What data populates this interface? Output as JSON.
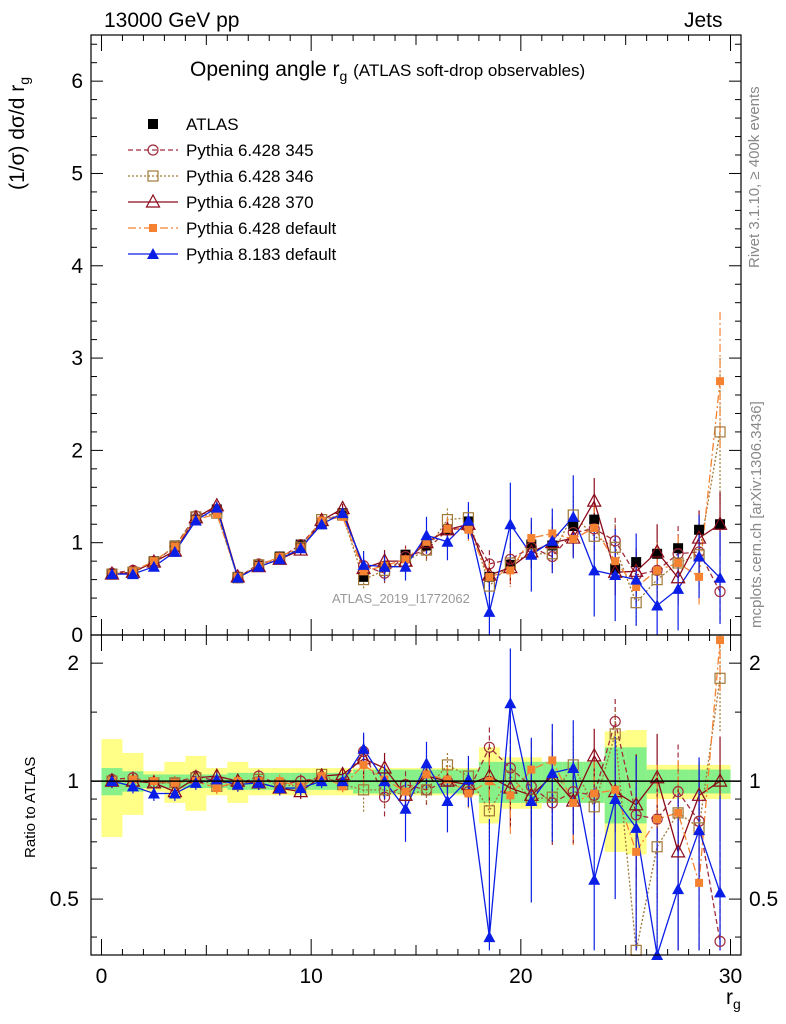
{
  "header": {
    "left": "13000 GeV pp",
    "right": "Jets"
  },
  "side_text": {
    "rivet": "Rivet 3.1.10, ≥ 400k events",
    "mcplots": "mcplots.cern.ch [arXiv:1306.3436]"
  },
  "watermark": "ATLAS_2019_I1772062",
  "colors": {
    "atlas": "#000000",
    "p345": "#a02c3c",
    "p346": "#a07838",
    "p370": "#8b0a1a",
    "pdefault": "#f58231",
    "p8": "#0a1ee6",
    "band_inner": "#88f088",
    "band_outer": "#ffff88"
  },
  "chart_data": [
    {
      "type": "scatter",
      "title_main": "Opening angle r",
      "title_sub": "g",
      "title_rest": "(ATLAS soft-drop observables)",
      "ylabel": "(1/σ) dσ/d r",
      "ylabel_sub": "g",
      "xlim": [
        -0.5,
        30.5
      ],
      "ylim": [
        0,
        6.5
      ],
      "yticks": [
        "0",
        "1",
        "2",
        "3",
        "4",
        "5",
        "6"
      ],
      "legend": {
        "placement": "top-left",
        "entries": [
          "ATLAS",
          "Pythia 6.428 345",
          "Pythia 6.428 346",
          "Pythia 6.428 370",
          "Pythia 6.428 default",
          "Pythia 8.183 default"
        ]
      },
      "x": [
        0.5,
        1.5,
        2.5,
        3.5,
        4.5,
        5.5,
        6.5,
        7.5,
        8.5,
        9.5,
        10.5,
        11.5,
        12.5,
        13.5,
        14.5,
        15.5,
        16.5,
        17.5,
        18.5,
        19.5,
        20.5,
        21.5,
        22.5,
        23.5,
        24.5,
        25.5,
        26.5,
        27.5,
        28.5,
        29.5
      ],
      "series": [
        {
          "name": "ATLAS",
          "values": [
            0.66,
            0.68,
            0.8,
            0.97,
            1.25,
            1.36,
            0.63,
            0.75,
            0.85,
            0.98,
            1.2,
            1.32,
            0.63,
            0.74,
            0.87,
            0.97,
            1.14,
            1.23,
            0.63,
            0.76,
            0.98,
            0.97,
            1.18,
            1.25,
            0.72,
            0.79,
            0.88,
            0.94,
            1.14,
            1.2
          ]
        },
        {
          "name": "Pythia 6.428 345",
          "values": [
            0.67,
            0.7,
            0.79,
            0.96,
            1.29,
            1.36,
            0.62,
            0.77,
            0.83,
            0.98,
            1.23,
            1.31,
            0.75,
            0.67,
            0.85,
            0.92,
            1.14,
            1.16,
            0.77,
            0.82,
            0.95,
            0.85,
            1.11,
            1.15,
            1.02,
            0.65,
            0.7,
            0.88,
            0.9,
            0.47
          ],
          "err": [
            0.05,
            0.05,
            0.05,
            0.05,
            0.05,
            0.05,
            0.05,
            0.05,
            0.05,
            0.05,
            0.05,
            0.05,
            0.1,
            0.12,
            0.12,
            0.12,
            0.12,
            0.12,
            0.15,
            0.18,
            0.18,
            0.18,
            0.2,
            0.25,
            0.25,
            0.25,
            0.3,
            0.3,
            0.3,
            0.35
          ]
        },
        {
          "name": "Pythia 6.428 346",
          "values": [
            0.66,
            0.68,
            0.79,
            0.96,
            1.28,
            1.32,
            0.62,
            0.76,
            0.83,
            0.95,
            1.25,
            1.3,
            0.6,
            0.7,
            0.8,
            0.92,
            1.25,
            1.27,
            0.53,
            0.78,
            0.88,
            0.88,
            1.3,
            1.07,
            0.95,
            0.35,
            0.6,
            0.78,
            0.87,
            2.2
          ],
          "err": [
            0.05,
            0.05,
            0.05,
            0.05,
            0.05,
            0.05,
            0.05,
            0.05,
            0.05,
            0.05,
            0.05,
            0.05,
            0.1,
            0.12,
            0.12,
            0.12,
            0.12,
            0.12,
            0.15,
            0.18,
            0.18,
            0.18,
            0.2,
            0.25,
            0.25,
            0.25,
            0.3,
            0.3,
            0.3,
            0.8
          ]
        },
        {
          "name": "Pythia 6.428 370",
          "values": [
            0.66,
            0.68,
            0.79,
            0.91,
            1.27,
            1.4,
            0.63,
            0.74,
            0.82,
            0.92,
            1.24,
            1.37,
            0.72,
            0.8,
            0.8,
            1.0,
            1.14,
            1.2,
            0.65,
            0.73,
            0.9,
            1.0,
            1.05,
            1.45,
            0.68,
            0.69,
            0.9,
            0.62,
            1.05,
            1.2
          ],
          "err": [
            0.05,
            0.05,
            0.05,
            0.05,
            0.05,
            0.05,
            0.05,
            0.05,
            0.05,
            0.05,
            0.05,
            0.05,
            0.1,
            0.12,
            0.12,
            0.12,
            0.12,
            0.12,
            0.15,
            0.18,
            0.18,
            0.18,
            0.2,
            0.25,
            0.25,
            0.25,
            0.3,
            0.3,
            0.3,
            0.35
          ]
        },
        {
          "name": "Pythia 6.428 default",
          "values": [
            0.66,
            0.69,
            0.8,
            0.96,
            1.25,
            1.31,
            0.63,
            0.75,
            0.85,
            0.95,
            1.24,
            1.28,
            0.69,
            0.75,
            0.82,
            1.01,
            1.15,
            1.14,
            0.63,
            0.7,
            1.05,
            1.1,
            1.04,
            1.16,
            0.8,
            0.52,
            0.7,
            0.78,
            0.63,
            2.75
          ],
          "err": [
            0.05,
            0.05,
            0.05,
            0.05,
            0.05,
            0.05,
            0.05,
            0.05,
            0.05,
            0.05,
            0.05,
            0.05,
            0.1,
            0.12,
            0.12,
            0.12,
            0.12,
            0.12,
            0.15,
            0.18,
            0.18,
            0.18,
            0.2,
            0.25,
            0.25,
            0.25,
            0.3,
            0.3,
            0.3,
            0.75
          ]
        },
        {
          "name": "Pythia 8.183 default",
          "values": [
            0.66,
            0.66,
            0.74,
            0.9,
            1.24,
            1.38,
            0.62,
            0.74,
            0.82,
            0.94,
            1.2,
            1.32,
            0.76,
            0.74,
            0.74,
            1.08,
            1.01,
            1.24,
            0.25,
            1.2,
            0.87,
            1.02,
            1.28,
            0.7,
            0.65,
            0.6,
            0.32,
            0.5,
            0.85,
            0.62
          ],
          "err": [
            0.05,
            0.05,
            0.05,
            0.05,
            0.05,
            0.05,
            0.05,
            0.05,
            0.05,
            0.05,
            0.05,
            0.05,
            0.15,
            0.15,
            0.15,
            0.2,
            0.2,
            0.2,
            0.35,
            0.45,
            0.4,
            0.35,
            0.45,
            0.5,
            0.5,
            0.5,
            0.4,
            0.45,
            0.45,
            0.5
          ]
        }
      ]
    },
    {
      "type": "scatter",
      "ylabel": "Ratio to ATLAS",
      "xlabel": "r",
      "xlabel_sub": "g",
      "xlim": [
        -0.5,
        30.5
      ],
      "ylim": [
        0.36,
        2.36
      ],
      "yticks": [
        "0.5",
        "1",
        "2"
      ],
      "xticks": [
        "0",
        "10",
        "20",
        "30"
      ],
      "band_inner": [
        0.08,
        0.06,
        0.04,
        0.04,
        0.04,
        0.04,
        0.05,
        0.05,
        0.05,
        0.05,
        0.05,
        0.05,
        0.07,
        0.07,
        0.07,
        0.07,
        0.07,
        0.07,
        0.12,
        0.12,
        0.12,
        0.12,
        0.12,
        0.12,
        0.22,
        0.22,
        0.07,
        0.07,
        0.07,
        0.07
      ],
      "band_outer": [
        0.28,
        0.18,
        0.06,
        0.12,
        0.16,
        0.08,
        0.12,
        0.08,
        0.08,
        0.08,
        0.08,
        0.08,
        0.08,
        0.08,
        0.08,
        0.08,
        0.08,
        0.08,
        0.22,
        0.15,
        0.15,
        0.12,
        0.12,
        0.12,
        0.34,
        0.35,
        0.1,
        0.1,
        0.1,
        0.1
      ],
      "series": [
        {
          "name": "Pythia 6.428 345",
          "values": [
            1.01,
            1.02,
            0.99,
            0.99,
            1.03,
            1.0,
            0.98,
            1.03,
            0.98,
            1.0,
            1.02,
            0.99,
            1.19,
            0.91,
            0.98,
            0.95,
            1.0,
            0.94,
            1.22,
            1.08,
            0.97,
            0.88,
            0.94,
            0.92,
            1.42,
            0.82,
            0.8,
            0.94,
            0.79,
            0.39
          ],
          "err": [
            0.04,
            0.04,
            0.04,
            0.04,
            0.04,
            0.04,
            0.04,
            0.04,
            0.04,
            0.04,
            0.04,
            0.04,
            0.12,
            0.1,
            0.08,
            0.08,
            0.08,
            0.08,
            0.15,
            0.2,
            0.2,
            0.2,
            0.2,
            0.2,
            0.2,
            0.35,
            0.3,
            0.3,
            0.2,
            0.3
          ]
        },
        {
          "name": "Pythia 6.428 346",
          "values": [
            1.0,
            1.0,
            0.99,
            0.99,
            1.02,
            0.97,
            0.98,
            1.01,
            0.98,
            0.97,
            1.04,
            0.98,
            0.95,
            0.95,
            0.92,
            0.95,
            1.1,
            1.03,
            0.84,
            1.03,
            0.9,
            0.91,
            1.1,
            0.86,
            1.32,
            0.37,
            0.68,
            0.83,
            0.76,
            1.83
          ],
          "err": [
            0.04,
            0.04,
            0.04,
            0.04,
            0.04,
            0.04,
            0.04,
            0.04,
            0.04,
            0.04,
            0.04,
            0.04,
            0.12,
            0.1,
            0.08,
            0.08,
            0.08,
            0.08,
            0.15,
            0.2,
            0.2,
            0.2,
            0.2,
            0.2,
            0.2,
            0.35,
            0.3,
            0.3,
            0.2,
            0.5
          ]
        },
        {
          "name": "Pythia 6.428 370",
          "values": [
            1.0,
            1.0,
            0.99,
            0.94,
            1.02,
            1.03,
            1.0,
            0.99,
            0.96,
            0.94,
            1.03,
            1.04,
            1.14,
            1.08,
            0.92,
            1.03,
            1.0,
            0.98,
            1.03,
            0.96,
            0.92,
            1.03,
            0.89,
            1.16,
            0.94,
            0.87,
            1.02,
            0.66,
            0.92,
            1.0
          ],
          "err": [
            0.04,
            0.04,
            0.04,
            0.04,
            0.04,
            0.04,
            0.04,
            0.04,
            0.04,
            0.04,
            0.04,
            0.04,
            0.12,
            0.1,
            0.08,
            0.08,
            0.08,
            0.08,
            0.15,
            0.2,
            0.2,
            0.2,
            0.2,
            0.2,
            0.2,
            0.3,
            0.3,
            0.3,
            0.2,
            0.3
          ]
        },
        {
          "name": "Pythia 6.428 default",
          "values": [
            1.0,
            1.01,
            1.0,
            0.99,
            1.0,
            0.96,
            1.0,
            1.0,
            1.0,
            0.97,
            1.03,
            0.97,
            1.1,
            1.01,
            0.94,
            1.04,
            1.01,
            0.93,
            1.0,
            0.92,
            1.07,
            1.13,
            0.88,
            0.93,
            0.95,
            0.66,
            0.8,
            0.83,
            0.55,
            2.29
          ],
          "err": [
            0.04,
            0.04,
            0.04,
            0.04,
            0.04,
            0.04,
            0.04,
            0.04,
            0.04,
            0.04,
            0.04,
            0.04,
            0.12,
            0.1,
            0.08,
            0.08,
            0.08,
            0.08,
            0.15,
            0.2,
            0.2,
            0.2,
            0.2,
            0.2,
            0.2,
            0.35,
            0.3,
            0.3,
            0.2,
            0.6
          ]
        },
        {
          "name": "Pythia 8.183 default",
          "values": [
            1.0,
            0.97,
            0.93,
            0.93,
            0.99,
            1.01,
            0.98,
            0.99,
            0.96,
            0.96,
            1.0,
            1.0,
            1.21,
            1.0,
            0.85,
            1.11,
            0.89,
            1.01,
            0.4,
            1.58,
            0.89,
            1.05,
            1.08,
            0.56,
            0.9,
            0.76,
            0.36,
            0.53,
            0.75,
            0.52
          ],
          "err": [
            0.04,
            0.04,
            0.04,
            0.04,
            0.04,
            0.04,
            0.04,
            0.04,
            0.04,
            0.04,
            0.04,
            0.04,
            0.12,
            0.1,
            0.15,
            0.15,
            0.15,
            0.15,
            0.4,
            0.6,
            0.4,
            0.35,
            0.35,
            0.4,
            0.4,
            0.4,
            0.4,
            0.4,
            0.4,
            0.4
          ]
        }
      ]
    }
  ]
}
